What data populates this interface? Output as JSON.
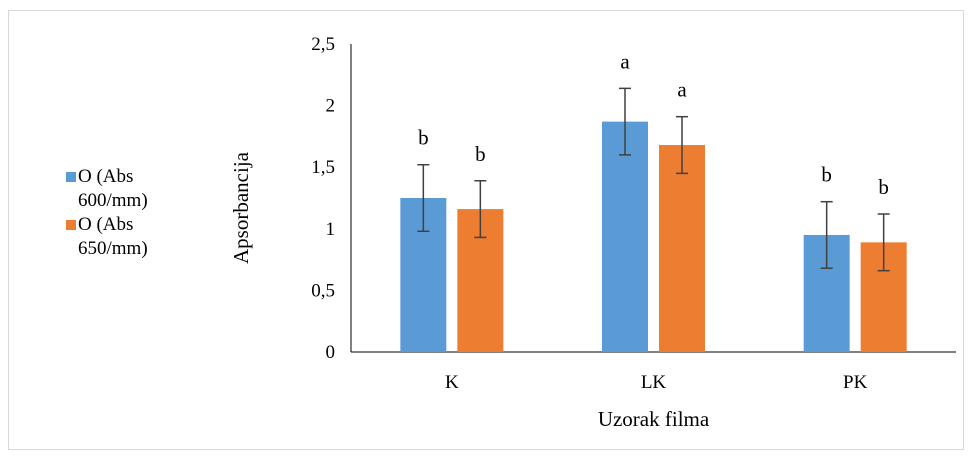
{
  "chart_data": {
    "type": "bar",
    "categories": [
      "K",
      "LK",
      "PK"
    ],
    "series": [
      {
        "name": "O (Abs 600/mm)",
        "legend_lines": [
          "O (Abs",
          "600/mm)"
        ],
        "color": "#5b9bd5",
        "values": [
          1.25,
          1.87,
          0.95
        ],
        "errors": [
          0.27,
          0.27,
          0.27
        ],
        "letters": [
          "b",
          "a",
          "b"
        ]
      },
      {
        "name": "O (Abs 650/mm)",
        "legend_lines": [
          "O (Abs",
          "650/mm)"
        ],
        "color": "#ed7d31",
        "values": [
          1.16,
          1.68,
          0.89
        ],
        "errors": [
          0.23,
          0.23,
          0.23
        ],
        "letters": [
          "b",
          "a",
          "b"
        ]
      }
    ],
    "xlabel": "Uzorak filma",
    "ylabel": "Apsorbancija",
    "ylim": [
      0,
      2.5
    ],
    "yticks": [
      "0",
      "0,5",
      "1",
      "1,5",
      "2",
      "2,5"
    ],
    "ytick_values": [
      0,
      0.5,
      1,
      1.5,
      2,
      2.5
    ],
    "grid": false,
    "legend_position": "left"
  }
}
